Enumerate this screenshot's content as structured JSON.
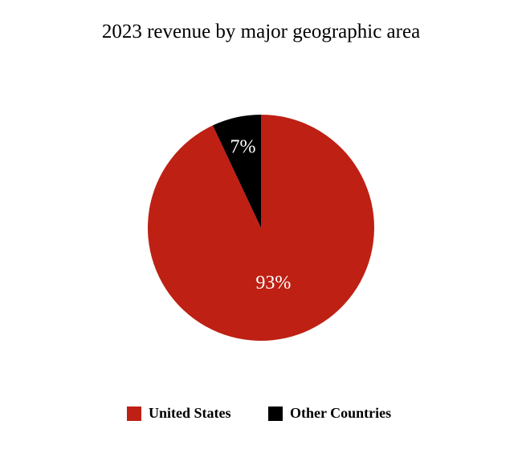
{
  "chart_data": {
    "type": "pie",
    "title": "2023 revenue by major geographic area",
    "slices": [
      {
        "name": "United States",
        "value": 93,
        "label": "93%",
        "color": "#be2014"
      },
      {
        "name": "Other Countries",
        "value": 7,
        "label": "7%",
        "color": "#000000"
      }
    ],
    "legend": {
      "placement": "bottom",
      "items": [
        {
          "label": "United States",
          "color": "#be2014"
        },
        {
          "label": "Other Countries",
          "color": "#000000"
        }
      ]
    }
  }
}
